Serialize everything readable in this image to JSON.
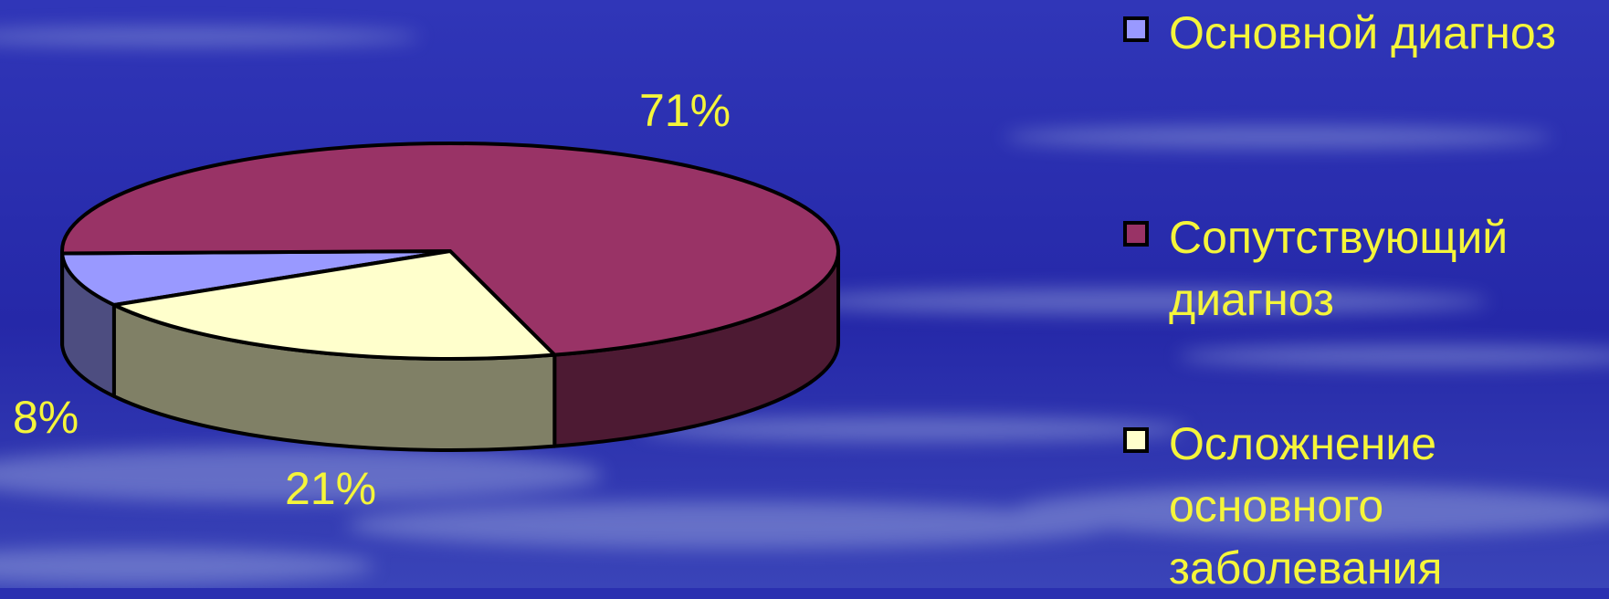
{
  "chart_data": {
    "type": "pie",
    "style": "3d",
    "slices": [
      {
        "label": "Основной диагноз",
        "value": 8,
        "value_label": "8%",
        "color": "#9999ff"
      },
      {
        "label": "Сопутствующий диагноз",
        "value": 71,
        "value_label": "71%",
        "color": "#993366"
      },
      {
        "label": "Осложнение основного заболевания",
        "value": 21,
        "value_label": "21%",
        "color": "#ffffcc"
      }
    ],
    "legend_position": "right",
    "background": "#2a2fb0"
  }
}
